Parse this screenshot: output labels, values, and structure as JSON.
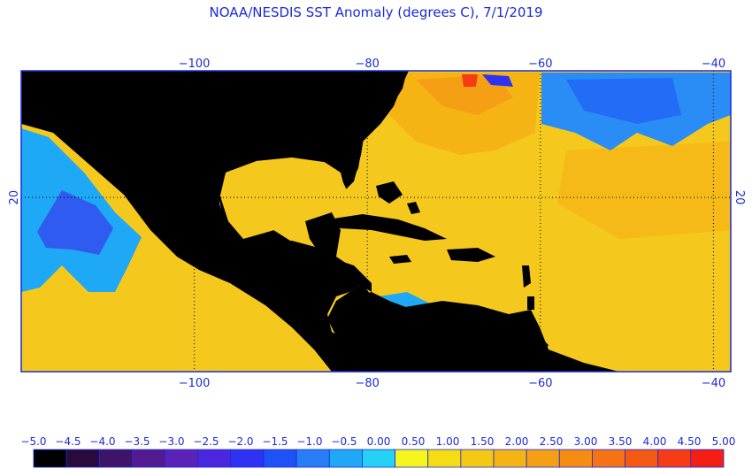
{
  "title": "NOAA/NESDIS SST Anomaly (degrees C), 7/1/2019",
  "map": {
    "lon_range": [
      -120,
      -38
    ],
    "lat_range": [
      -2,
      36
    ],
    "x_ticks": [
      {
        "value": -100,
        "label": "−100"
      },
      {
        "value": -80,
        "label": "−80"
      },
      {
        "value": -60,
        "label": "−60"
      },
      {
        "value": -40,
        "label": "−40"
      }
    ],
    "y_ticks": [
      {
        "value": 20,
        "label": "20"
      }
    ],
    "grid": true
  },
  "colorbar": {
    "labels": [
      "−5.0",
      "−4.5",
      "−4.0",
      "−3.5",
      "−3.0",
      "−2.5",
      "−2.0",
      "−1.5",
      "−1.0",
      "−0.5",
      "0.00",
      "0.50",
      "1.00",
      "1.50",
      "2.00",
      "2.50",
      "3.00",
      "3.50",
      "4.00",
      "4.50",
      "5.00"
    ],
    "colors": [
      "#000000",
      "#2a0a3a",
      "#3f1468",
      "#531b8f",
      "#5a22b8",
      "#4a27dc",
      "#2f32f2",
      "#1e52f5",
      "#2a7ef5",
      "#1ea8f5",
      "#25d2f5",
      "#f5f51e",
      "#f5dc14",
      "#f5c814",
      "#f5b414",
      "#f5a014",
      "#f58c14",
      "#f57314",
      "#f55a14",
      "#f53c14",
      "#f51e14"
    ]
  },
  "palette": {
    "land": "#000000",
    "warm_base": "#f5c81e",
    "warm_hot": "#f5a014",
    "cool_light": "#1ea8f5",
    "cool_dark": "#2f5bf0",
    "text": "#1a2bd6"
  }
}
